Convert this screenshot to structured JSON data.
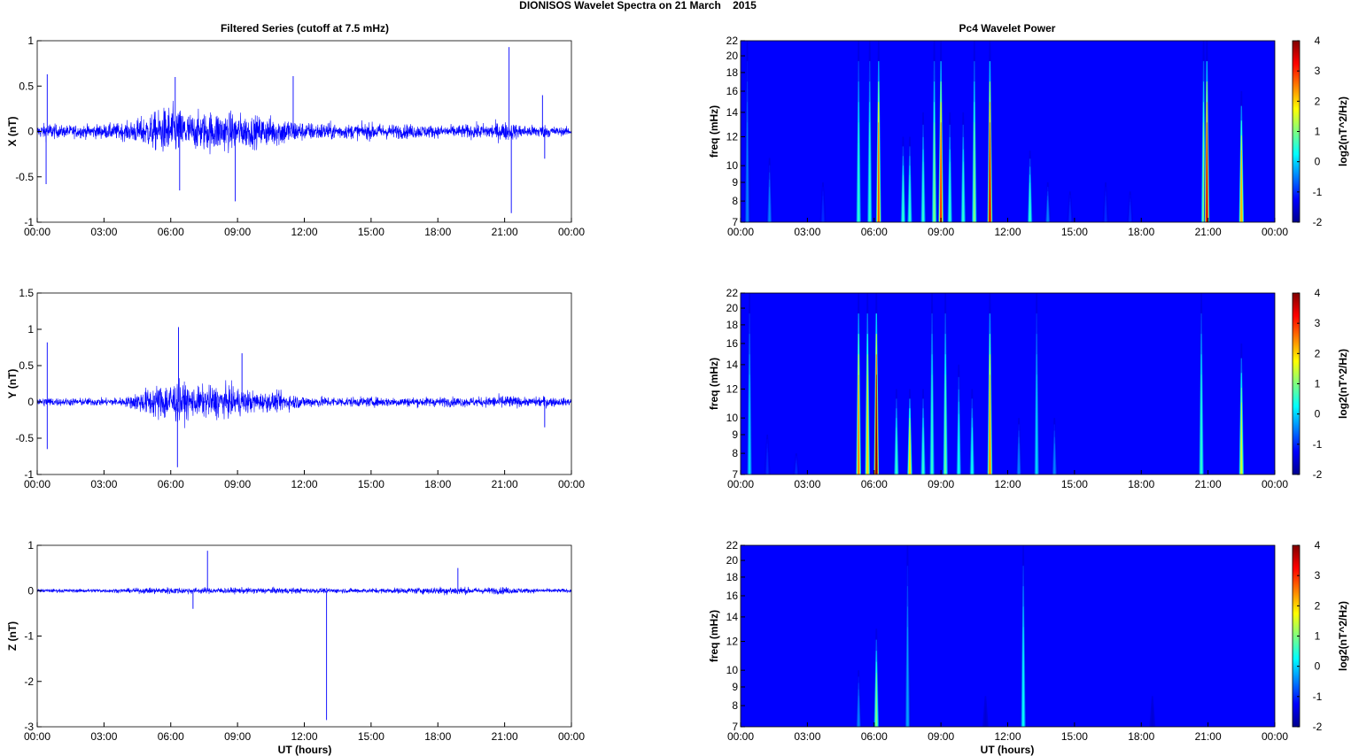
{
  "page": {
    "main_title": "DIONISOS Wavelet Spectra on 21 March    2015",
    "left_title": "Filtered Series (cutoff at 7.5 mHz)",
    "right_title": "Pc4 Wavelet Power",
    "xlabel": "UT (hours)"
  },
  "chart_data": [
    {
      "id": "x-series",
      "type": "line",
      "ylabel": "X (nT)",
      "ylim": [
        -1,
        1
      ],
      "yticks": [
        "1",
        "0.5",
        "0",
        "-0.5",
        "-1"
      ],
      "xticks": [
        "00:00",
        "03:00",
        "06:00",
        "09:00",
        "12:00",
        "15:00",
        "18:00",
        "21:00",
        "00:00"
      ],
      "xlim_hours": [
        0,
        24
      ],
      "color": "#0000ff",
      "envelope": [
        [
          0,
          0.1
        ],
        [
          0.5,
          0.15
        ],
        [
          1,
          0.1
        ],
        [
          2,
          0.11
        ],
        [
          3,
          0.12
        ],
        [
          4,
          0.15
        ],
        [
          4.8,
          0.25
        ],
        [
          5.5,
          0.35
        ],
        [
          6,
          0.45
        ],
        [
          6.5,
          0.35
        ],
        [
          7,
          0.3
        ],
        [
          8,
          0.35
        ],
        [
          9,
          0.3
        ],
        [
          10,
          0.25
        ],
        [
          11,
          0.25
        ],
        [
          12,
          0.15
        ],
        [
          13,
          0.15
        ],
        [
          14,
          0.12
        ],
        [
          15,
          0.14
        ],
        [
          16,
          0.12
        ],
        [
          17,
          0.12
        ],
        [
          18,
          0.1
        ],
        [
          19,
          0.11
        ],
        [
          20,
          0.13
        ],
        [
          21,
          0.16
        ],
        [
          22,
          0.1
        ],
        [
          22.7,
          0.12
        ],
        [
          23.5,
          0.07
        ],
        [
          24,
          0.07
        ]
      ],
      "spikes": [
        {
          "t": 0.45,
          "v": 0.63
        },
        {
          "t": 0.4,
          "v": -0.58
        },
        {
          "t": 6.2,
          "v": 0.6
        },
        {
          "t": 6.4,
          "v": -0.65
        },
        {
          "t": 8.9,
          "v": -0.77
        },
        {
          "t": 11.5,
          "v": 0.61
        },
        {
          "t": 21.2,
          "v": 0.93
        },
        {
          "t": 21.3,
          "v": -0.9
        },
        {
          "t": 22.7,
          "v": 0.4
        },
        {
          "t": 22.8,
          "v": -0.3
        }
      ]
    },
    {
      "id": "y-series",
      "type": "line",
      "ylabel": "Y (nT)",
      "ylim": [
        -1,
        1.5
      ],
      "yticks": [
        "1.5",
        "1",
        "0.5",
        "0",
        "-0.5",
        "-1"
      ],
      "xticks": [
        "00:00",
        "03:00",
        "06:00",
        "09:00",
        "12:00",
        "15:00",
        "18:00",
        "21:00",
        "00:00"
      ],
      "xlim_hours": [
        0,
        24
      ],
      "color": "#0000ff",
      "envelope": [
        [
          0,
          0.08
        ],
        [
          0.5,
          0.1
        ],
        [
          1,
          0.08
        ],
        [
          3,
          0.08
        ],
        [
          4,
          0.1
        ],
        [
          5,
          0.3
        ],
        [
          6,
          0.45
        ],
        [
          6.5,
          0.4
        ],
        [
          7,
          0.3
        ],
        [
          8,
          0.35
        ],
        [
          9,
          0.3
        ],
        [
          10,
          0.2
        ],
        [
          11,
          0.2
        ],
        [
          12,
          0.12
        ],
        [
          14,
          0.1
        ],
        [
          16,
          0.1
        ],
        [
          18,
          0.1
        ],
        [
          20,
          0.1
        ],
        [
          21,
          0.15
        ],
        [
          22,
          0.08
        ],
        [
          22.8,
          0.12
        ],
        [
          23.5,
          0.08
        ],
        [
          24,
          0.08
        ]
      ],
      "spikes": [
        {
          "t": 0.45,
          "v": 0.82
        },
        {
          "t": 0.45,
          "v": -0.65
        },
        {
          "t": 6.35,
          "v": 1.03
        },
        {
          "t": 6.3,
          "v": -0.9
        },
        {
          "t": 9.2,
          "v": 0.67
        },
        {
          "t": 22.8,
          "v": -0.35
        }
      ]
    },
    {
      "id": "z-series",
      "type": "line",
      "ylabel": "Z (nT)",
      "ylim": [
        -3,
        1
      ],
      "yticks": [
        "1",
        "0",
        "-1",
        "-2",
        "-3"
      ],
      "xticks": [
        "00:00",
        "03:00",
        "06:00",
        "09:00",
        "12:00",
        "15:00",
        "18:00",
        "21:00",
        "00:00"
      ],
      "xlim_hours": [
        0,
        24
      ],
      "color": "#0000ff",
      "envelope": [
        [
          0,
          0.06
        ],
        [
          2,
          0.06
        ],
        [
          4,
          0.07
        ],
        [
          5,
          0.1
        ],
        [
          6,
          0.12
        ],
        [
          7,
          0.1
        ],
        [
          9,
          0.1
        ],
        [
          11,
          0.1
        ],
        [
          13,
          0.08
        ],
        [
          15,
          0.08
        ],
        [
          17,
          0.1
        ],
        [
          18.8,
          0.15
        ],
        [
          19.5,
          0.1
        ],
        [
          21,
          0.12
        ],
        [
          22,
          0.08
        ],
        [
          24,
          0.06
        ]
      ],
      "spikes": [
        {
          "t": 7.65,
          "v": 0.88
        },
        {
          "t": 7.0,
          "v": -0.4
        },
        {
          "t": 13.0,
          "v": -2.85
        },
        {
          "t": 18.9,
          "v": 0.5
        }
      ]
    },
    {
      "id": "x-wavelet",
      "type": "heatmap",
      "ylabel": "freq (mHz)",
      "yticks": [
        "22",
        "20",
        "18",
        "16",
        "14",
        "12",
        "10",
        "9",
        "8",
        "7"
      ],
      "ylim": [
        7,
        22
      ],
      "colorbar": {
        "label": "log2(nT^2/Hz)",
        "range": [
          -2,
          4
        ],
        "ticks": [
          "4",
          "3",
          "2",
          "1",
          "0",
          "-1",
          "-2"
        ]
      },
      "xticks": [
        "00:00",
        "03:00",
        "06:00",
        "09:00",
        "12:00",
        "15:00",
        "18:00",
        "21:00",
        "00:00"
      ],
      "xlim_hours": [
        0,
        24
      ],
      "bursts": [
        {
          "t": 0.3,
          "top": 22,
          "peak": -0.5
        },
        {
          "t": 1.3,
          "top": 10.5,
          "peak": -0.5
        },
        {
          "t": 3.7,
          "top": 9,
          "peak": -1
        },
        {
          "t": 5.3,
          "top": 22,
          "peak": 0.5
        },
        {
          "t": 5.8,
          "top": 22,
          "peak": 0.5
        },
        {
          "t": 6.2,
          "top": 22,
          "peak": 2.8
        },
        {
          "t": 7.3,
          "top": 12,
          "peak": 0.5
        },
        {
          "t": 7.6,
          "top": 12,
          "peak": 0.5
        },
        {
          "t": 8.2,
          "top": 14,
          "peak": 0.5
        },
        {
          "t": 8.7,
          "top": 22,
          "peak": 1
        },
        {
          "t": 9.0,
          "top": 22,
          "peak": 3
        },
        {
          "t": 9.4,
          "top": 14,
          "peak": 0.5
        },
        {
          "t": 10.0,
          "top": 14,
          "peak": 0.5
        },
        {
          "t": 10.5,
          "top": 22,
          "peak": 1
        },
        {
          "t": 11.2,
          "top": 22,
          "peak": 3.5
        },
        {
          "t": 13.0,
          "top": 11,
          "peak": 0.5
        },
        {
          "t": 13.8,
          "top": 9,
          "peak": -0.5
        },
        {
          "t": 14.8,
          "top": 8.5,
          "peak": -1
        },
        {
          "t": 16.4,
          "top": 9,
          "peak": -1
        },
        {
          "t": 17.5,
          "top": 8.5,
          "peak": -1
        },
        {
          "t": 20.8,
          "top": 22,
          "peak": 1
        },
        {
          "t": 20.95,
          "top": 22,
          "peak": 3.5
        },
        {
          "t": 22.5,
          "top": 16,
          "peak": 2.2
        }
      ]
    },
    {
      "id": "y-wavelet",
      "type": "heatmap",
      "ylabel": "freq (mHz)",
      "yticks": [
        "22",
        "20",
        "18",
        "16",
        "14",
        "12",
        "10",
        "9",
        "8",
        "7"
      ],
      "ylim": [
        7,
        22
      ],
      "colorbar": {
        "label": "log2(nT^2/Hz)",
        "range": [
          -2,
          4
        ],
        "ticks": [
          "4",
          "3",
          "2",
          "1",
          "0",
          "-1",
          "-2"
        ]
      },
      "xticks": [
        "00:00",
        "03:00",
        "06:00",
        "09:00",
        "12:00",
        "15:00",
        "18:00",
        "21:00",
        "00:00"
      ],
      "xlim_hours": [
        0,
        24
      ],
      "bursts": [
        {
          "t": 0.4,
          "top": 22,
          "peak": 0
        },
        {
          "t": 1.2,
          "top": 9,
          "peak": -1
        },
        {
          "t": 2.5,
          "top": 8,
          "peak": -1
        },
        {
          "t": 5.3,
          "top": 22,
          "peak": 2.5
        },
        {
          "t": 5.7,
          "top": 22,
          "peak": 2.0
        },
        {
          "t": 6.1,
          "top": 22,
          "peak": 4
        },
        {
          "t": 7.0,
          "top": 12,
          "peak": 0.5
        },
        {
          "t": 7.6,
          "top": 12,
          "peak": 2
        },
        {
          "t": 8.2,
          "top": 12,
          "peak": 0.5
        },
        {
          "t": 8.6,
          "top": 22,
          "peak": 0.5
        },
        {
          "t": 9.2,
          "top": 22,
          "peak": 0.8
        },
        {
          "t": 9.8,
          "top": 14,
          "peak": 0.3
        },
        {
          "t": 10.4,
          "top": 12,
          "peak": 0.3
        },
        {
          "t": 11.2,
          "top": 22,
          "peak": 2.5
        },
        {
          "t": 12.5,
          "top": 10,
          "peak": -0.5
        },
        {
          "t": 13.3,
          "top": 22,
          "peak": 0
        },
        {
          "t": 14.1,
          "top": 10,
          "peak": -0.5
        },
        {
          "t": 20.7,
          "top": 22,
          "peak": 0.5
        },
        {
          "t": 22.5,
          "top": 16,
          "peak": 1.5
        }
      ]
    },
    {
      "id": "z-wavelet",
      "type": "heatmap",
      "ylabel": "freq (mHz)",
      "yticks": [
        "22",
        "20",
        "18",
        "16",
        "14",
        "12",
        "10",
        "9",
        "8",
        "7"
      ],
      "ylim": [
        7,
        22
      ],
      "colorbar": {
        "label": "log2(nT^2/Hz)",
        "range": [
          -2,
          4
        ],
        "ticks": [
          "4",
          "3",
          "2",
          "1",
          "0",
          "-1",
          "-2"
        ]
      },
      "xticks": [
        "00:00",
        "03:00",
        "06:00",
        "09:00",
        "12:00",
        "15:00",
        "18:00",
        "21:00",
        "00:00"
      ],
      "xlim_hours": [
        0,
        24
      ],
      "bursts": [
        {
          "t": 5.3,
          "top": 10,
          "peak": -0.5
        },
        {
          "t": 6.1,
          "top": 13,
          "peak": 1
        },
        {
          "t": 7.5,
          "top": 22,
          "peak": -0.3
        },
        {
          "t": 12.7,
          "top": 22,
          "peak": 0.3
        },
        {
          "t": 11.0,
          "top": 8.5,
          "peak": -1.5
        },
        {
          "t": 18.5,
          "top": 8.5,
          "peak": -1.5
        }
      ]
    }
  ]
}
